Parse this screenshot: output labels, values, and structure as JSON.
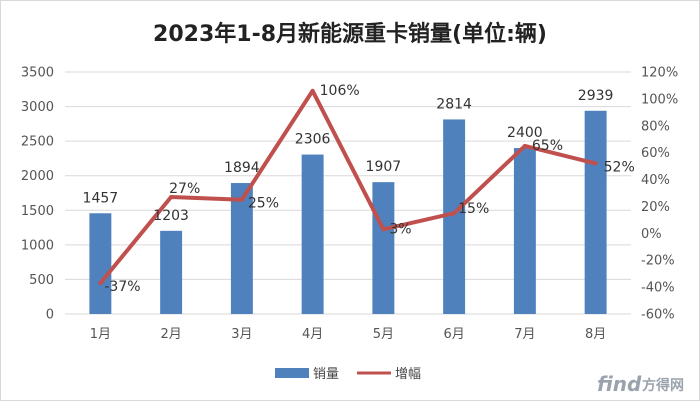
{
  "watermark": {
    "brand": "find",
    "name": "方得网"
  },
  "chart_data": {
    "type": "bar",
    "title": "2023年1-8月新能源重卡销量(单位:辆)",
    "categories": [
      "1月",
      "2月",
      "3月",
      "4月",
      "5月",
      "6月",
      "7月",
      "8月"
    ],
    "series": [
      {
        "name": "销量",
        "type": "bar",
        "axis": "left",
        "color": "#4f81bd",
        "values": [
          1457,
          1203,
          1894,
          2306,
          1907,
          2814,
          2400,
          2939
        ],
        "labels": [
          "1457",
          "1203",
          "1894",
          "2306",
          "1907",
          "2814",
          "2400",
          "2939"
        ]
      },
      {
        "name": "增幅",
        "type": "line",
        "axis": "right",
        "color": "#c0504d",
        "values": [
          -37,
          27,
          25,
          106,
          3,
          15,
          65,
          52
        ],
        "labels": [
          "-37%",
          "27%",
          "25%",
          "106%",
          "3%",
          "15%",
          "65%",
          "52%"
        ]
      }
    ],
    "y_left": {
      "min": 0,
      "max": 3500,
      "step": 500,
      "ticks": [
        "0",
        "500",
        "1000",
        "1500",
        "2000",
        "2500",
        "3000",
        "3500"
      ]
    },
    "y_right": {
      "min": -60,
      "max": 120,
      "step": 20,
      "ticks": [
        "-60%",
        "-40%",
        "-20%",
        "0%",
        "20%",
        "40%",
        "60%",
        "80%",
        "100%",
        "120%"
      ]
    },
    "grid": true,
    "legend": {
      "position": "bottom",
      "entries": [
        "销量",
        "增幅"
      ]
    }
  }
}
